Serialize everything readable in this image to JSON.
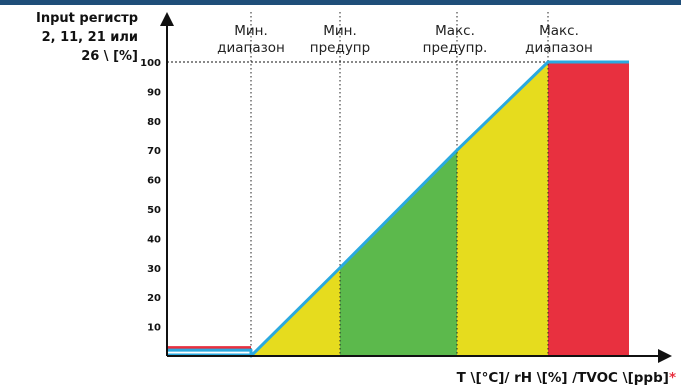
{
  "colors": {
    "header_bar": "#1f4e79",
    "red": "#e8303f",
    "yellow": "#e6dc1e",
    "green": "#5cb94c",
    "line": "#2aa9df",
    "axis": "#111111"
  },
  "y_axis": {
    "title_lines": [
      "Input регистр",
      "2, 11, 21 или",
      "26 \\ [%]"
    ],
    "ticks": [
      "10",
      "20",
      "30",
      "40",
      "50",
      "60",
      "70",
      "80",
      "90",
      "100"
    ]
  },
  "x_axis": {
    "title": "T \\[°C]/ rH \\[%] /TVOC \\[ppb]",
    "title_mark": "*"
  },
  "zones": [
    {
      "lines": [
        "Мин.",
        "диапазон"
      ]
    },
    {
      "lines": [
        "Мин.",
        "предупр"
      ]
    },
    {
      "lines": [
        "Макс.",
        "предупр."
      ]
    },
    {
      "lines": [
        "Макс.",
        "диапазон"
      ]
    }
  ],
  "chart_data": {
    "type": "area",
    "ylim": [
      0,
      100
    ],
    "y_ticks": [
      10,
      20,
      30,
      40,
      50,
      60,
      70,
      80,
      90,
      100
    ],
    "breakpoints": [
      {
        "label": "Мин. диапазон",
        "y": 0
      },
      {
        "label": "Мин. предупр",
        "y": 30
      },
      {
        "label": "Макс. предупр.",
        "y": 70
      },
      {
        "label": "Макс. диапазон",
        "y": 100
      }
    ],
    "regions": [
      {
        "from": null,
        "to": "Мин. диапазон",
        "color": "red"
      },
      {
        "from": "Мин. диапазон",
        "to": "Мин. предупр",
        "color": "yellow"
      },
      {
        "from": "Мин. предупр",
        "to": "Макс. предупр.",
        "color": "green"
      },
      {
        "from": "Макс. предупр.",
        "to": "Макс. диапазон",
        "color": "yellow"
      },
      {
        "from": "Макс. диапазон",
        "to": null,
        "color": "red"
      }
    ],
    "below_range_value": 2
  }
}
